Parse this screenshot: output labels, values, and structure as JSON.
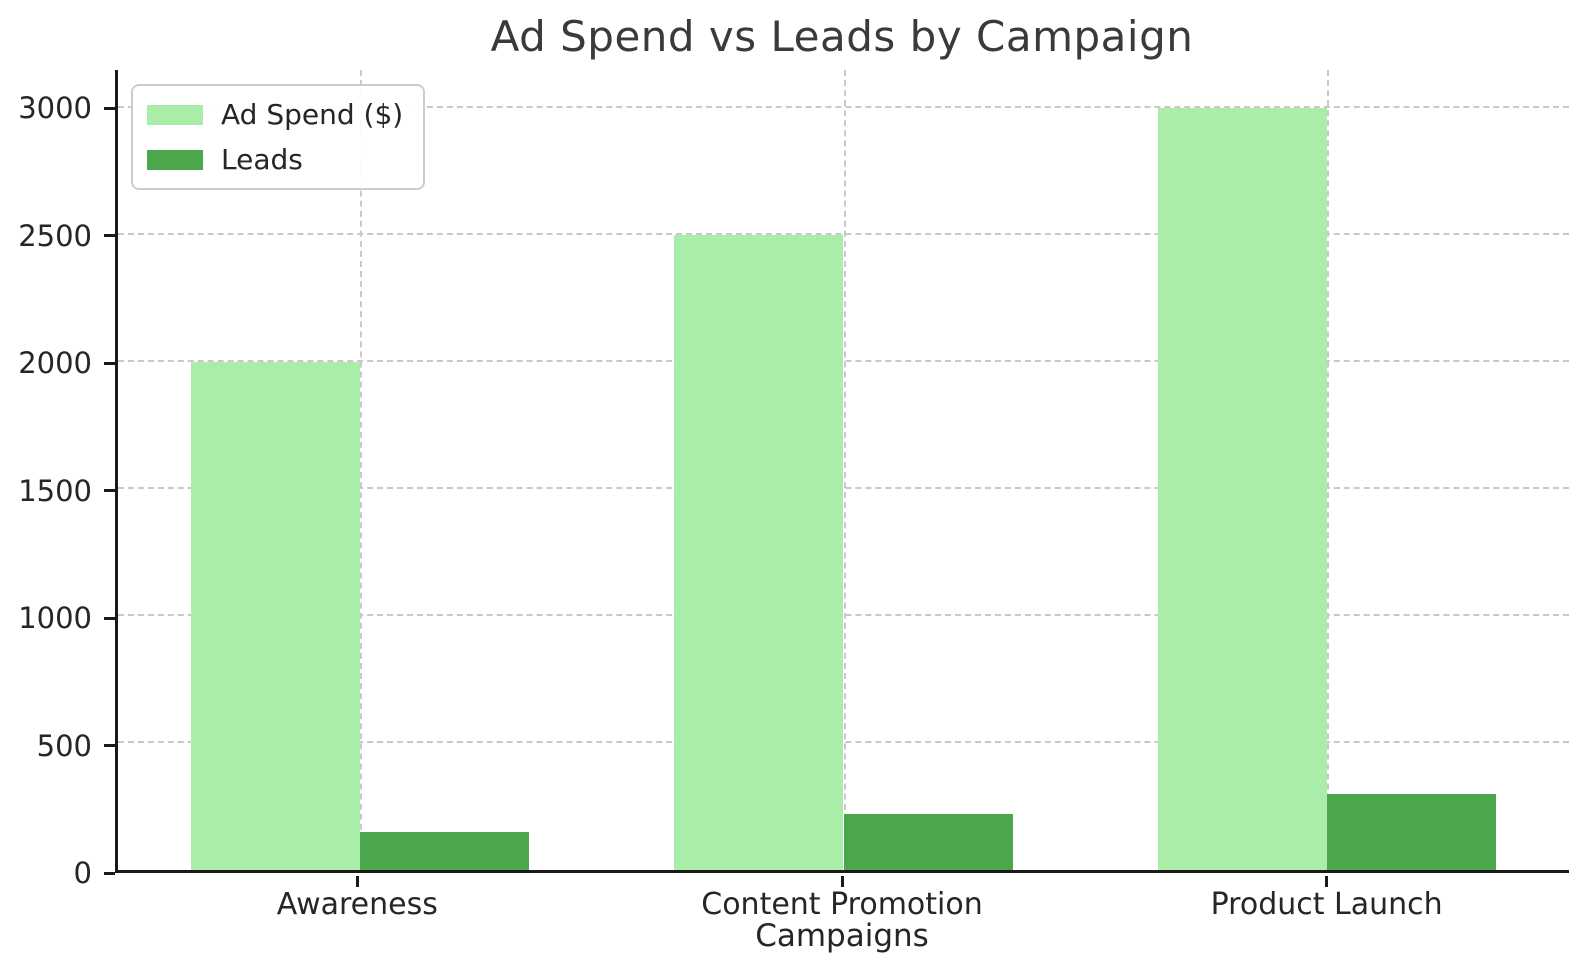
{
  "chart_data": {
    "type": "bar",
    "title": "Ad Spend vs Leads by Campaign",
    "xlabel": "Campaigns",
    "ylabel": "",
    "categories": [
      "Awareness",
      "Content Promotion",
      "Product Launch"
    ],
    "series": [
      {
        "name": "Ad Spend ($)",
        "color": "#a9eda9",
        "values": [
          2000,
          2500,
          3000
        ]
      },
      {
        "name": "Leads",
        "color": "#4ca64c",
        "values": [
          150,
          220,
          300
        ]
      }
    ],
    "yticks": [
      0,
      500,
      1000,
      1500,
      2000,
      2500,
      3000
    ],
    "ylim": [
      0,
      3150
    ],
    "grid": true,
    "grid_style": "dashed",
    "legend_position": "upper-left",
    "bar_width_fraction": 0.35
  },
  "colors": {
    "spine": "#1a1a1a",
    "grid": "#c9c9c9",
    "title_text": "#3a3a3a",
    "tick_text": "#262626",
    "legend_border": "#cccccc",
    "background": "#ffffff"
  }
}
